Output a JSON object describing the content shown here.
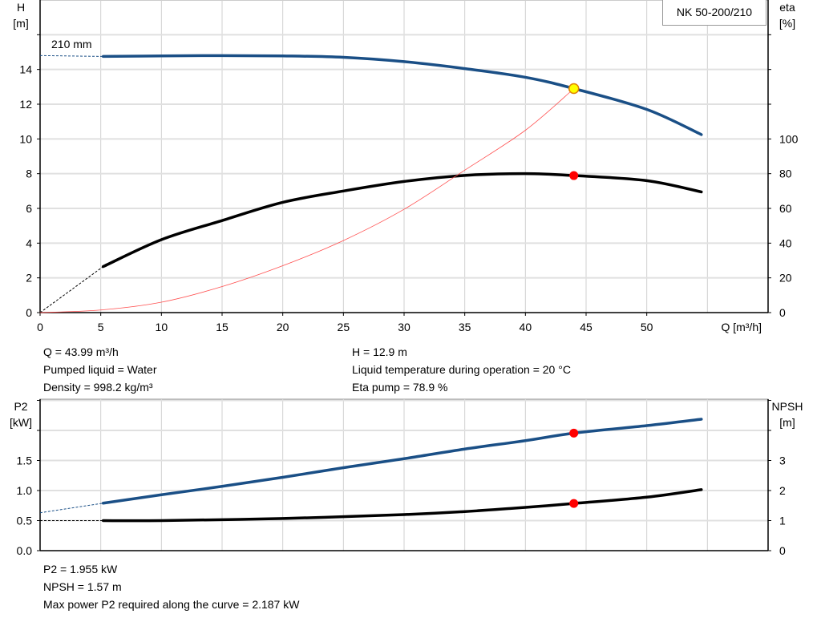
{
  "chart_data": [
    {
      "type": "line",
      "title": "NK 50-200/210",
      "xlabel": "Q [m³/h]",
      "ylabel_left": [
        "H",
        "[m]"
      ],
      "ylabel_right": [
        "eta",
        "[%]"
      ],
      "xlim": [
        0,
        60
      ],
      "ylim_left": [
        0,
        18
      ],
      "ylim_right": [
        0,
        180
      ],
      "grid": true,
      "x_ticks": [
        0,
        5,
        10,
        15,
        20,
        25,
        30,
        35,
        40,
        45,
        50
      ],
      "y_ticks_left": [
        0,
        2,
        4,
        6,
        8,
        10,
        12,
        14
      ],
      "y_ticks_right": [
        0,
        20,
        40,
        60,
        80,
        100
      ],
      "annotation": "210 mm",
      "series": [
        {
          "key": "head",
          "axis": "left",
          "color": "#1a4f86",
          "x": [
            5.2,
            10,
            15,
            20,
            25,
            30,
            35,
            40,
            44,
            50,
            54.5
          ],
          "y": [
            14.75,
            14.78,
            14.8,
            14.78,
            14.7,
            14.45,
            14.05,
            13.55,
            12.9,
            11.7,
            10.25
          ],
          "dashed_start": [
            0,
            14.8
          ]
        },
        {
          "key": "eta",
          "axis": "right",
          "color": "#000000",
          "x": [
            5.2,
            10,
            15,
            20,
            25,
            30,
            35,
            40,
            44,
            50,
            54.5
          ],
          "y": [
            26.5,
            42,
            53,
            63.5,
            70,
            75.5,
            79,
            80,
            78.9,
            76,
            69.5
          ],
          "dashed_start": [
            0,
            0
          ]
        },
        {
          "key": "system",
          "axis": "left",
          "color": "#ff5050",
          "x": [
            0,
            5,
            10,
            15,
            20,
            25,
            30,
            35,
            40,
            44
          ],
          "y": [
            0,
            0.15,
            0.6,
            1.5,
            2.7,
            4.15,
            5.95,
            8.2,
            10.5,
            12.9
          ]
        }
      ],
      "operating_points": [
        {
          "series": "head",
          "x": 43.99,
          "y": 12.9,
          "color": "#ffff00"
        },
        {
          "series": "eta",
          "x": 43.99,
          "y": 78.9,
          "color": "#ff0000"
        }
      ]
    },
    {
      "type": "line",
      "ylabel_left": [
        "P2",
        "[kW]"
      ],
      "ylabel_right": [
        "NPSH",
        "[m]"
      ],
      "xlim": [
        0,
        60
      ],
      "ylim_left": [
        0,
        2.52
      ],
      "ylim_right": [
        0,
        5.04
      ],
      "grid": true,
      "y_ticks_left": [
        "0.0",
        "0.5",
        "1.0",
        "1.5"
      ],
      "y_ticks_right": [
        "0",
        "1",
        "2",
        "3"
      ],
      "series": [
        {
          "key": "p2",
          "axis": "left",
          "color": "#1a4f86",
          "x": [
            5.2,
            10,
            15,
            20,
            25,
            30,
            35,
            40,
            44,
            50,
            54.5
          ],
          "y": [
            0.79,
            0.93,
            1.07,
            1.22,
            1.38,
            1.53,
            1.69,
            1.83,
            1.955,
            2.08,
            2.187
          ],
          "dashed_start": [
            0,
            0.63
          ]
        },
        {
          "key": "npsh",
          "axis": "right",
          "color": "#000000",
          "x": [
            5.2,
            10,
            20,
            30,
            35,
            40,
            44,
            50,
            54.5
          ],
          "y": [
            1.0,
            1.0,
            1.07,
            1.2,
            1.3,
            1.44,
            1.57,
            1.78,
            2.03
          ],
          "dashed_start": [
            0,
            1.0
          ]
        }
      ],
      "operating_points": [
        {
          "series": "p2",
          "x": 43.99,
          "y": 1.955,
          "color": "#ff0000"
        },
        {
          "series": "npsh",
          "x": 43.99,
          "y": 1.57,
          "color": "#ff0000"
        }
      ]
    }
  ],
  "info_top": {
    "q": "Q = 43.99 m³/h",
    "liquid": "Pumped liquid = Water",
    "density": "Density = 998.2 kg/m³",
    "h": "H = 12.9 m",
    "temp": "Liquid temperature during operation = 20 °C",
    "eta": "Eta pump = 78.9 %"
  },
  "info_bottom": {
    "p2": "P2 = 1.955 kW",
    "npsh": "NPSH = 1.57 m",
    "max_power": "Max power P2 required along the curve = 2.187 kW"
  }
}
